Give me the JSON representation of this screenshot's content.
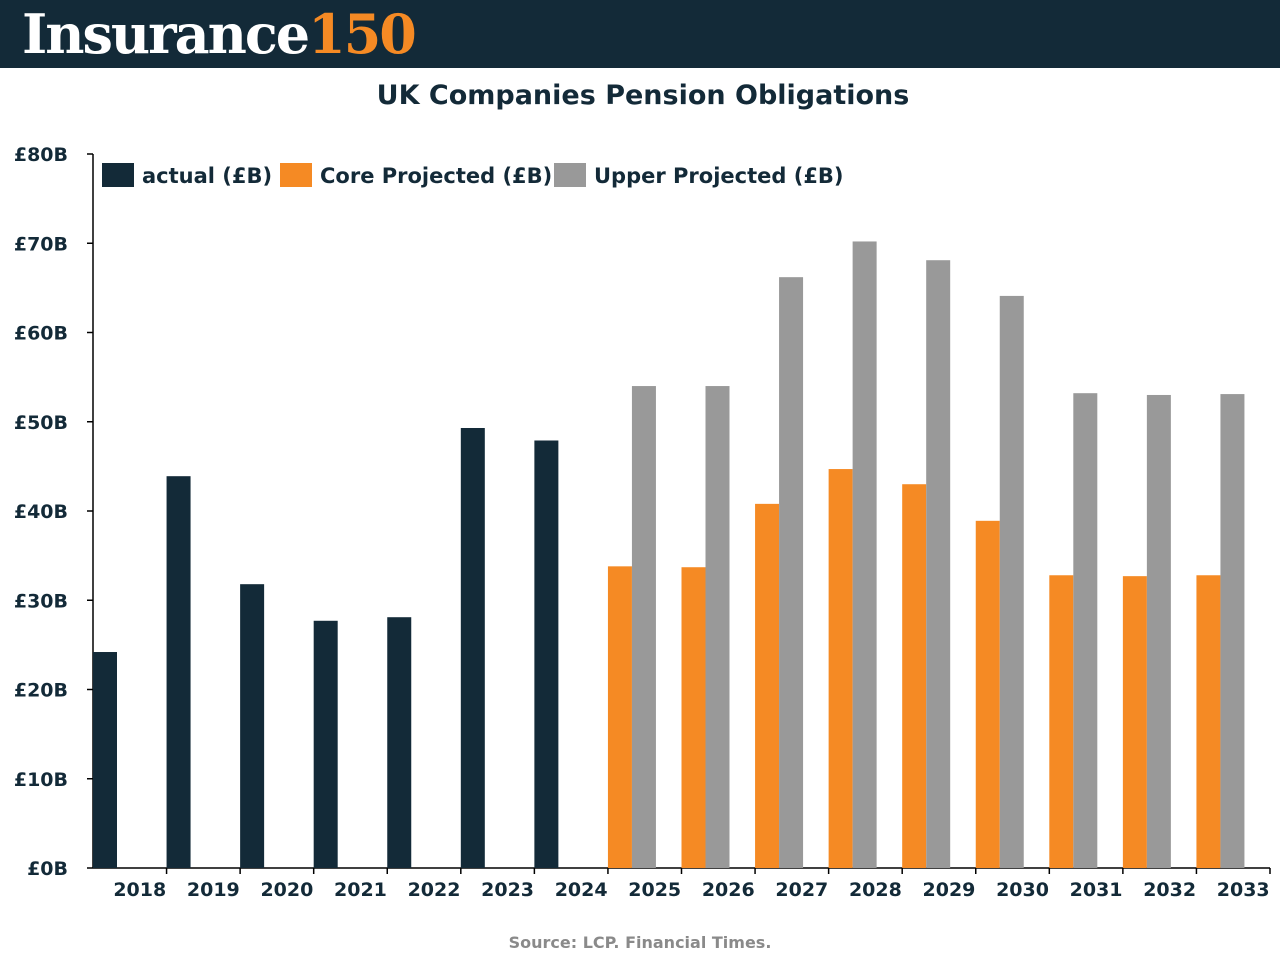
{
  "brand": {
    "name": "Insurance",
    "number": "150"
  },
  "source": "Source: LCP. Financial Times.",
  "colors": {
    "header_bg": "#132a38",
    "actual": "#132a38",
    "core": "#f58a24",
    "upper": "#999999",
    "accent": "#f58a24"
  },
  "chart_data": {
    "type": "bar",
    "title": "UK Companies Pension Obligations",
    "xlabel": "",
    "ylabel": "",
    "categories": [
      "2018",
      "2019",
      "2020",
      "2021",
      "2022",
      "2023",
      "2024",
      "2025",
      "2026",
      "2027",
      "2028",
      "2029",
      "2030",
      "2031",
      "2032",
      "2033"
    ],
    "series": [
      {
        "name": "actual (£B)",
        "values": [
          24.2,
          43.9,
          31.8,
          27.7,
          28.1,
          49.3,
          47.9,
          null,
          null,
          null,
          null,
          null,
          null,
          null,
          null,
          null
        ]
      },
      {
        "name": "Core Projected (£B)",
        "values": [
          null,
          null,
          null,
          null,
          null,
          null,
          null,
          33.8,
          33.7,
          40.8,
          44.7,
          43.0,
          38.9,
          32.8,
          32.7,
          32.8
        ]
      },
      {
        "name": "Upper Projected (£B)",
        "values": [
          null,
          null,
          null,
          null,
          null,
          null,
          null,
          54.0,
          54.0,
          66.2,
          70.2,
          68.1,
          64.1,
          53.2,
          53.0,
          53.1
        ]
      }
    ],
    "ylim": [
      0,
      80
    ],
    "yticks": [
      0,
      10,
      20,
      30,
      40,
      50,
      60,
      70,
      80
    ],
    "ytick_labels": [
      "£0B",
      "£10B",
      "£20B",
      "£30B",
      "£40B",
      "£50B",
      "£60B",
      "£70B",
      "£80B"
    ],
    "grid": false,
    "legend_position": "top-left"
  }
}
